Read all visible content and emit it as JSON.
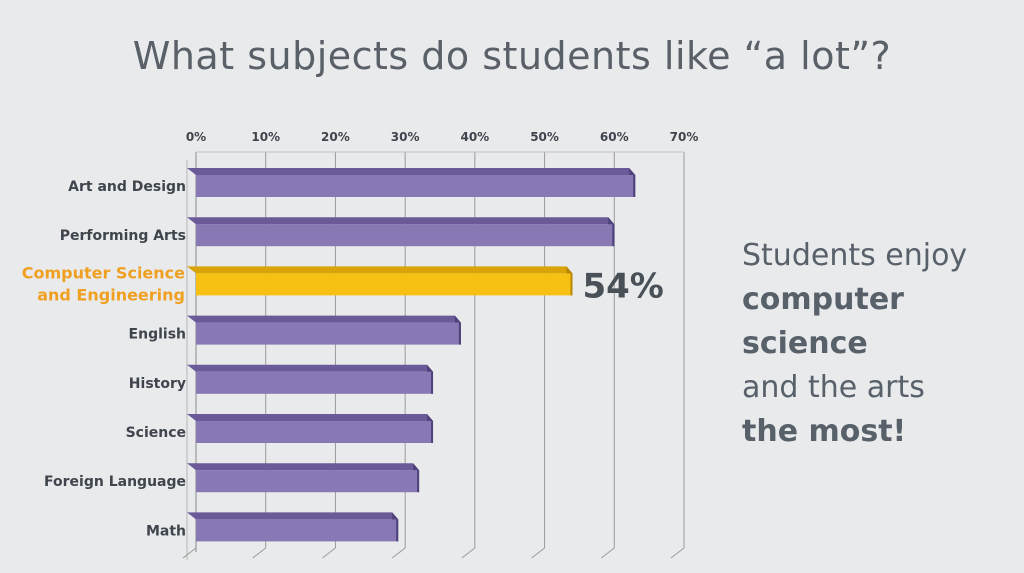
{
  "title": "What subjects do students like “a lot”?",
  "side_text": [
    {
      "text": "Students enjoy",
      "bold": false
    },
    {
      "text": "computer",
      "bold": true
    },
    {
      "text": "science",
      "bold": true
    },
    {
      "text": "and the arts",
      "bold": false
    },
    {
      "text": "the most!",
      "bold": true
    }
  ],
  "colors": {
    "bar": "#8878b4",
    "bar_top": "#6a5a98",
    "bar_side": "#4f427a",
    "highlight": "#f7c114",
    "highlight_top": "#d9a40a",
    "highlight_side": "#b68705",
    "highlight_label": "#f0a020",
    "text": "#3f454c",
    "grid": "#9a9a9a"
  },
  "chart_data": {
    "type": "bar",
    "orientation": "horizontal",
    "title": "What subjects do students like “a lot”?",
    "categories": [
      "Art and Design",
      "Performing Arts",
      "Computer Science\nand Engineering",
      "English",
      "History",
      "Science",
      "Foreign Language",
      "Math"
    ],
    "values": [
      63,
      60,
      54,
      38,
      34,
      34,
      32,
      29
    ],
    "highlight_index": 2,
    "highlight_label": "54%",
    "xlim": [
      0,
      70
    ],
    "xticks": [
      "0%",
      "10%",
      "20%",
      "30%",
      "40%",
      "50%",
      "60%",
      "70%"
    ],
    "grid": true
  }
}
